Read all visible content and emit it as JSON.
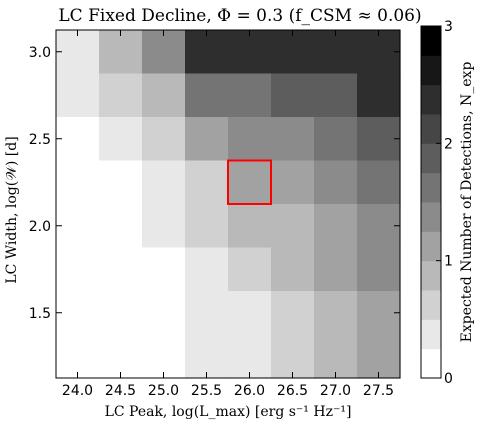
{
  "chart_data": {
    "type": "heatmap",
    "title": "LC Fixed Decline, Φ = 0.3 (f_CSM ≈ 0.06)",
    "xlabel": "LC Peak, log(L_max) [erg s⁻¹ Hz⁻¹]",
    "ylabel": "LC Width, log(𝒲) [d]",
    "x_ticks": [
      "24.0",
      "24.5",
      "25.0",
      "25.5",
      "26.0",
      "26.5",
      "27.0",
      "27.5"
    ],
    "y_ticks": [
      "1.5",
      "2.0",
      "2.5",
      "3.0"
    ],
    "xlim": [
      23.75,
      27.75
    ],
    "ylim": [
      1.125,
      3.125
    ],
    "x_edges": [
      23.75,
      24.25,
      24.75,
      25.25,
      25.75,
      26.25,
      26.75,
      27.25,
      27.75
    ],
    "y_edges": [
      1.125,
      1.625,
      1.875,
      2.125,
      2.375,
      2.625,
      2.875,
      3.125
    ],
    "rows_top_to_bottom": [
      [
        0.35,
        0.75,
        1.3,
        2.25,
        2.25,
        2.25,
        2.25,
        2.25
      ],
      [
        0.4,
        0.65,
        0.95,
        1.6,
        1.6,
        1.85,
        1.85,
        2.25
      ],
      [
        0.18,
        0.3,
        0.5,
        1.0,
        1.35,
        1.35,
        1.6,
        1.85
      ],
      [
        0.1,
        0.22,
        0.4,
        0.7,
        1.0,
        1.0,
        1.3,
        1.6
      ],
      [
        0.05,
        0.1,
        0.25,
        0.55,
        0.8,
        0.9,
        1.2,
        1.45
      ],
      [
        0.02,
        0.06,
        0.15,
        0.35,
        0.6,
        0.75,
        1.0,
        1.3
      ],
      [
        0.0,
        0.03,
        0.1,
        0.25,
        0.45,
        0.65,
        0.9,
        1.2
      ]
    ],
    "highlight_cell": {
      "x": [
        25.75,
        26.25
      ],
      "y": [
        2.125,
        2.375
      ],
      "color": "#ff0000"
    },
    "colorbar": {
      "label": "Expected Number of Detections, N_exp",
      "range": [
        0,
        3
      ],
      "ticks": [
        "0",
        "1",
        "2",
        "3"
      ],
      "levels": 12,
      "colormap": "greys"
    }
  }
}
